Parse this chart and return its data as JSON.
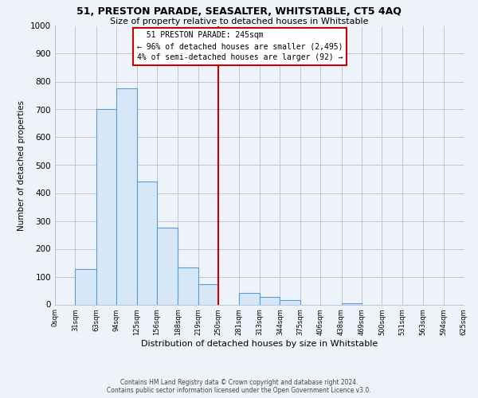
{
  "title": "51, PRESTON PARADE, SEASALTER, WHITSTABLE, CT5 4AQ",
  "subtitle": "Size of property relative to detached houses in Whitstable",
  "xlabel": "Distribution of detached houses by size in Whitstable",
  "ylabel": "Number of detached properties",
  "bin_edges": [
    0,
    31,
    63,
    94,
    125,
    156,
    188,
    219,
    250,
    281,
    313,
    344,
    375,
    406,
    438,
    469,
    500,
    531,
    563,
    594,
    625
  ],
  "bin_labels": [
    "0sqm",
    "31sqm",
    "63sqm",
    "94sqm",
    "125sqm",
    "156sqm",
    "188sqm",
    "219sqm",
    "250sqm",
    "281sqm",
    "313sqm",
    "344sqm",
    "375sqm",
    "406sqm",
    "438sqm",
    "469sqm",
    "500sqm",
    "531sqm",
    "563sqm",
    "594sqm",
    "625sqm"
  ],
  "counts": [
    0,
    127,
    700,
    775,
    440,
    275,
    133,
    72,
    0,
    42,
    27,
    15,
    0,
    0,
    5,
    0,
    0,
    0,
    0,
    0
  ],
  "bar_color": "#d6e8f7",
  "bar_edge_color": "#5b9bd5",
  "marker_value": 250,
  "marker_color": "#cc0000",
  "annotation_title": "51 PRESTON PARADE: 245sqm",
  "annotation_line1": "← 96% of detached houses are smaller (2,495)",
  "annotation_line2": "4% of semi-detached houses are larger (92) →",
  "ylim": [
    0,
    1000
  ],
  "yticks": [
    0,
    100,
    200,
    300,
    400,
    500,
    600,
    700,
    800,
    900,
    1000
  ],
  "footer_line1": "Contains HM Land Registry data © Crown copyright and database right 2024.",
  "footer_line2": "Contains public sector information licensed under the Open Government Licence v3.0.",
  "background_color": "#eef2f9"
}
